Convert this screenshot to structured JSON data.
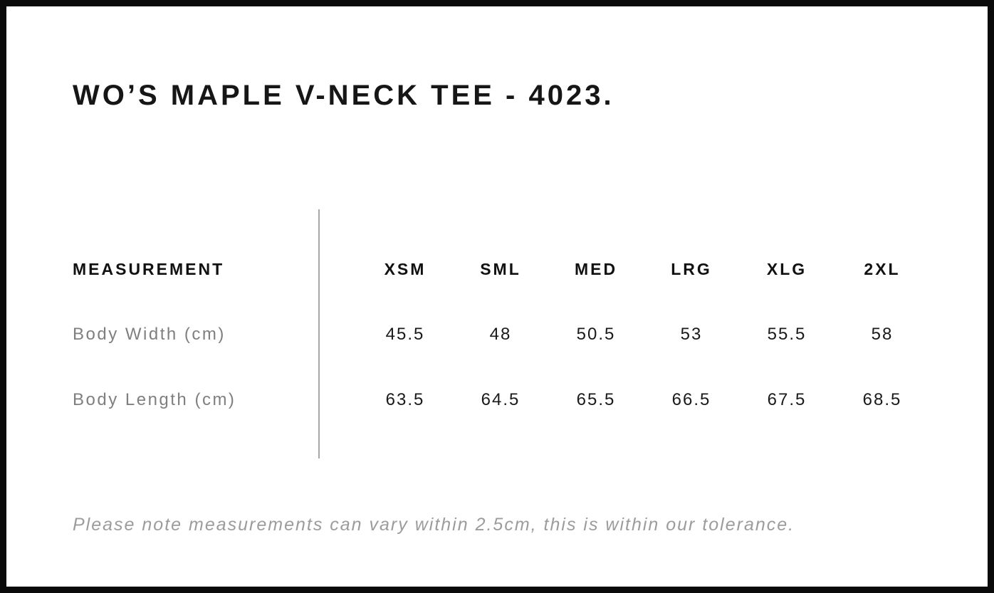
{
  "chart_data": {
    "type": "table",
    "title": "WO’S MAPLE V-NECK TEE - 4023.",
    "row_header_label": "MEASUREMENT",
    "categories": [
      "XSM",
      "SML",
      "MED",
      "LRG",
      "XLG",
      "2XL"
    ],
    "series": [
      {
        "name": "Body Width (cm)",
        "values": [
          45.5,
          48,
          50.5,
          53,
          55.5,
          58
        ]
      },
      {
        "name": "Body Length (cm)",
        "values": [
          63.5,
          64.5,
          65.5,
          66.5,
          67.5,
          68.5
        ]
      }
    ],
    "note": "Please note measurements can vary within 2.5cm, this is within our tolerance."
  },
  "colors": {
    "frame_border": "#0a0a0a",
    "title_text": "#161616",
    "header_text": "#111111",
    "value_text": "#1a1a1a",
    "row_label_gray": "#7f7f7f",
    "note_gray": "#9c9c9c",
    "divider_gray": "#a6a6a6",
    "background": "#ffffff"
  }
}
